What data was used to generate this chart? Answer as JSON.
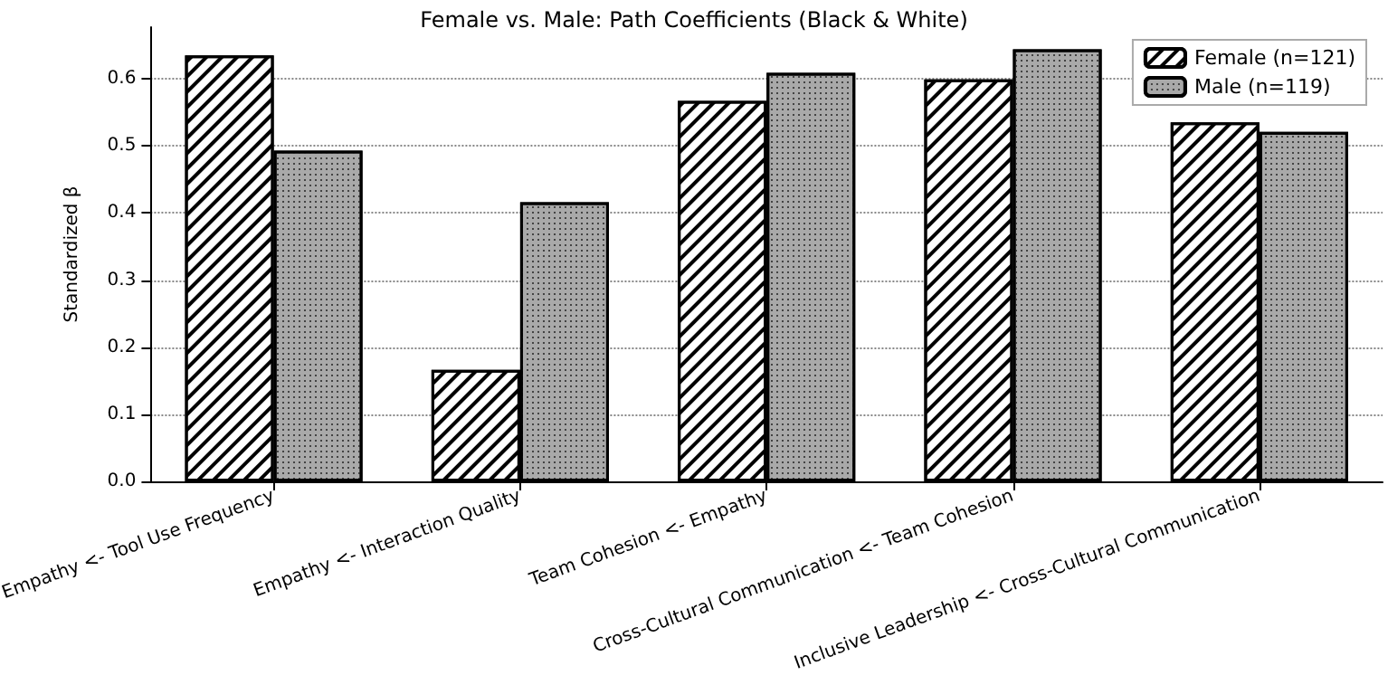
{
  "chart_data": {
    "type": "bar",
    "title": "Female vs. Male: Path Coefficients (Black & White)",
    "ylabel": "Standardized β",
    "categories": [
      "Empathy <- Tool Use Frequency",
      "Empathy <- Interaction Quality",
      "Team Cohesion <- Empathy",
      "Cross-Cultural Communication <- Team Cohesion",
      "Inclusive Leadership <- Cross-Cultural Communication"
    ],
    "series": [
      {
        "name": "Female (n=121)",
        "color": "#ffffff",
        "values": [
          0.635,
          0.166,
          0.567,
          0.599,
          0.535
        ]
      },
      {
        "name": "Male (n=119)",
        "color": "#a9a9a9",
        "values": [
          0.493,
          0.416,
          0.609,
          0.644,
          0.521
        ]
      }
    ],
    "ylim": [
      0,
      0.677
    ],
    "yticks": [
      {
        "value": 0,
        "label": "0.0"
      },
      0.1,
      0.2,
      0.3,
      0.4,
      0.5,
      0.6
    ],
    "grid": "y",
    "legend": "top right"
  }
}
